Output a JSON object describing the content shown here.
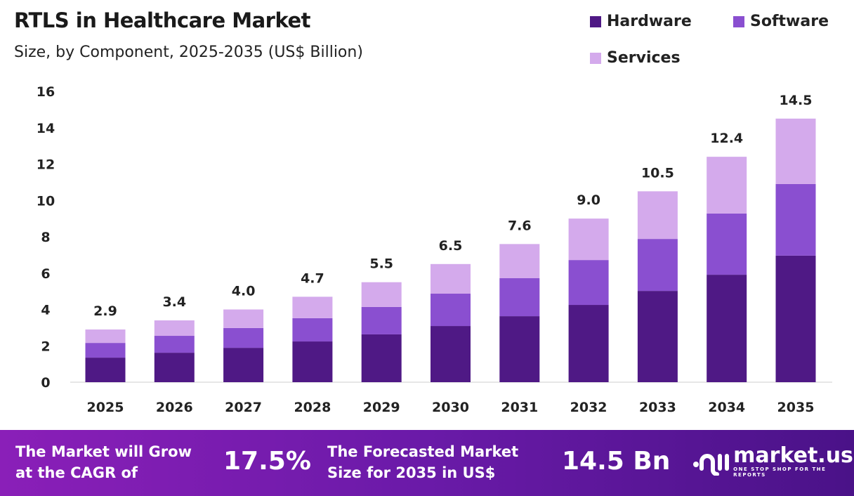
{
  "chart_data": {
    "type": "bar",
    "stacked": true,
    "title": "RTLS in Healthcare Market",
    "subtitle": "Size, by Component, 2025-2035 (US$ Billion)",
    "categories": [
      "2025",
      "2026",
      "2027",
      "2028",
      "2029",
      "2030",
      "2031",
      "2032",
      "2033",
      "2034",
      "2035"
    ],
    "series": [
      {
        "name": "Hardware",
        "color": "#4f1985",
        "values": [
          1.35,
          1.62,
          1.89,
          2.24,
          2.63,
          3.09,
          3.63,
          4.25,
          5.02,
          5.91,
          6.96
        ]
      },
      {
        "name": "Software",
        "color": "#8a4fd0",
        "values": [
          0.81,
          0.93,
          1.09,
          1.28,
          1.51,
          1.78,
          2.09,
          2.47,
          2.86,
          3.37,
          3.94
        ]
      },
      {
        "name": "Services",
        "color": "#d4aaec",
        "values": [
          0.74,
          0.85,
          1.02,
          1.18,
          1.36,
          1.63,
          1.88,
          2.28,
          2.62,
          3.12,
          3.6
        ]
      }
    ],
    "totals": [
      "2.9",
      "3.4",
      "4.0",
      "4.7",
      "5.5",
      "6.5",
      "7.6",
      "9.0",
      "10.5",
      "12.4",
      "14.5"
    ],
    "ylim": [
      0,
      16
    ],
    "yticks": [
      "0",
      "2",
      "4",
      "6",
      "8",
      "10",
      "12",
      "14",
      "16"
    ],
    "grid": false,
    "legend_position": "top-right"
  },
  "footer": {
    "cagr_text_1": "The Market will Grow",
    "cagr_text_2": "at the CAGR of",
    "cagr_value": "17.5%",
    "forecast_text_1": "The Forecasted Market",
    "forecast_text_2": "Size for 2035 in US$",
    "forecast_value": "14.5 Bn",
    "logo_name": "market.us",
    "logo_tagline": "ONE STOP SHOP FOR THE REPORTS"
  }
}
